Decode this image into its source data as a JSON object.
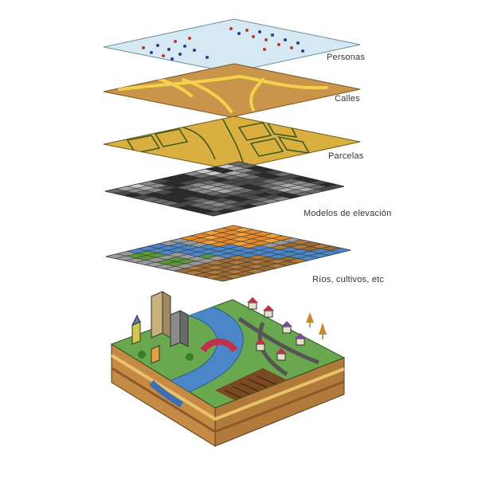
{
  "layers": [
    {
      "id": "personas",
      "label": "Personas"
    },
    {
      "id": "calles",
      "label": "Calles"
    },
    {
      "id": "parcelas",
      "label": "Parcelas"
    },
    {
      "id": "modelos",
      "label": "Modelos de elevación"
    },
    {
      "id": "rios",
      "label": "Ríos, cultivos, etc"
    }
  ],
  "colors": {
    "sky_layer": "#cfe6ef",
    "people_red": "#c0392b",
    "people_blue": "#2c3e91",
    "street_base": "#c8954a",
    "street_line": "#f2d24a",
    "parcel_base": "#d9b040",
    "parcel_line": "#3d5a1e",
    "water": "#4a86c8",
    "crop_green": "#5a9a3a",
    "crop_orange": "#e58a2a",
    "soil": "#b07a3a",
    "grass": "#6aa84f"
  }
}
